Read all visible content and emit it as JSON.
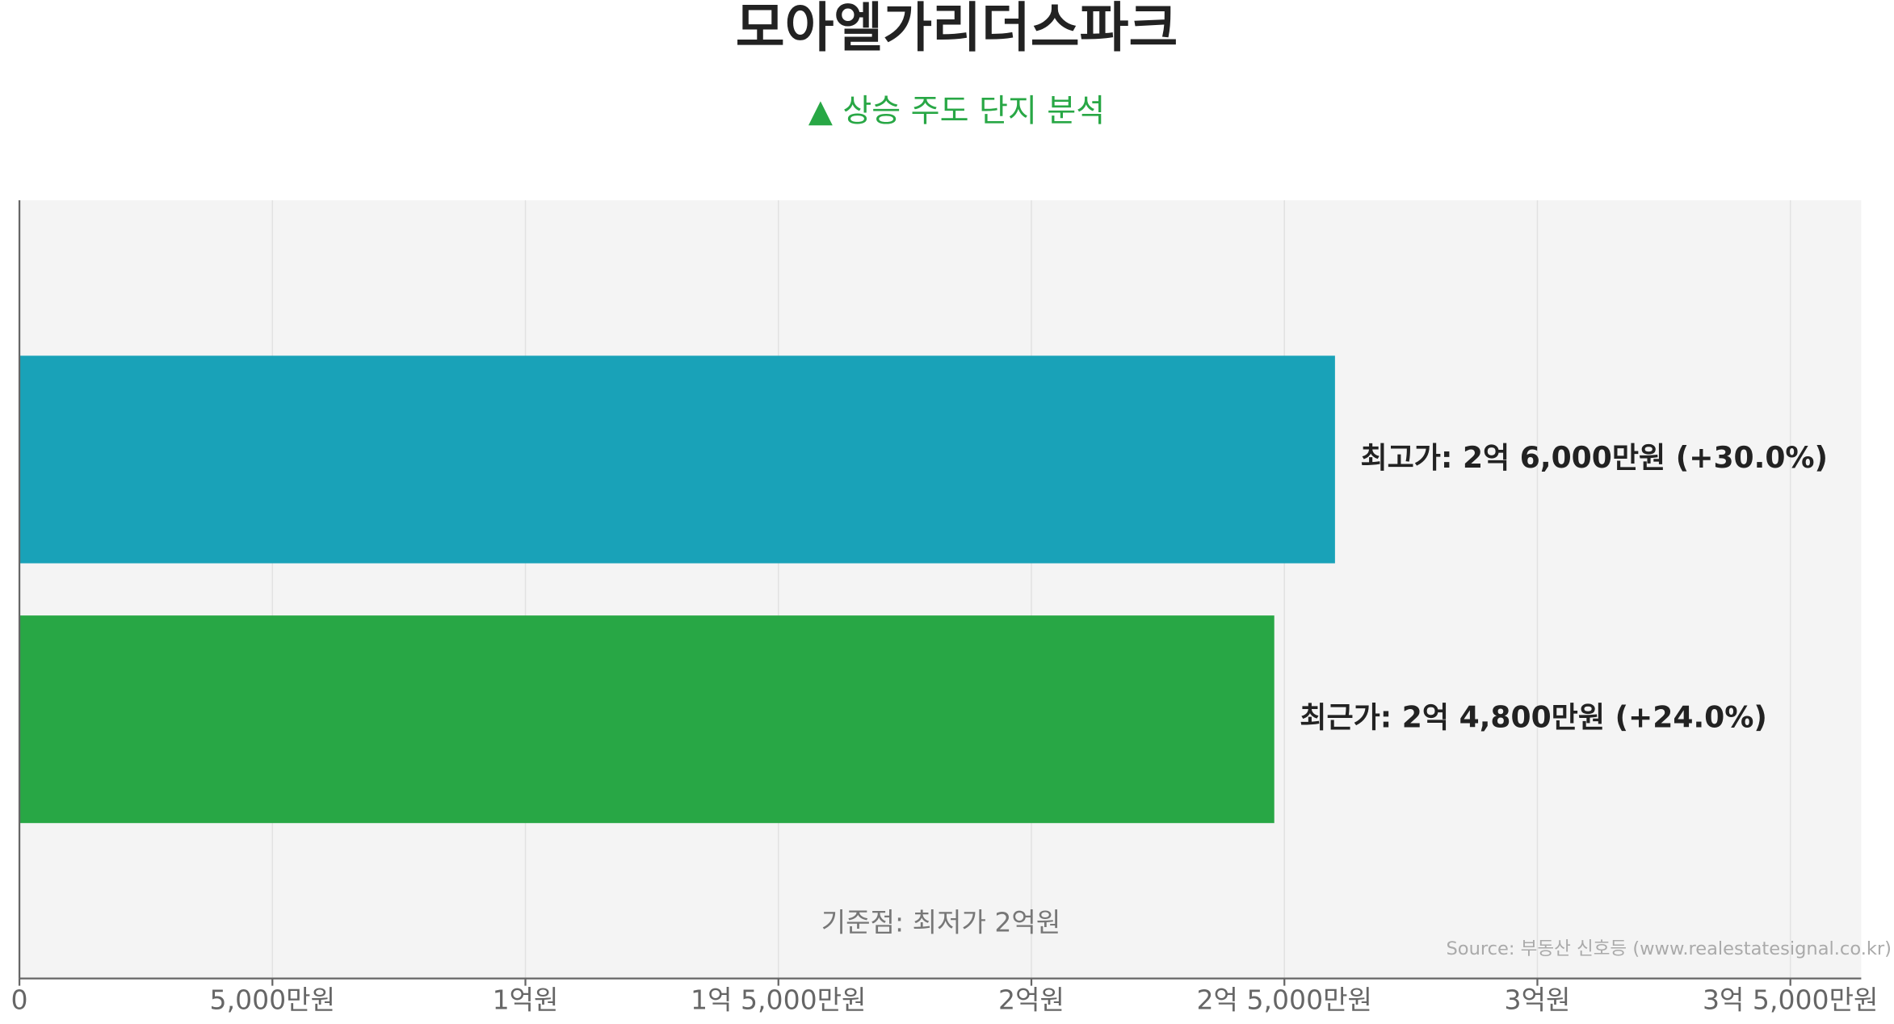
{
  "chart_data": {
    "type": "hbar",
    "title": "모아엘가리더스파크",
    "subtitle": "▲ 상승 주도 단지 분석",
    "values": [
      260000000,
      248000000
    ],
    "value_labels": [
      "최고가: 2억 6,000만원 (+30.0%)",
      "최근가: 2억 4,800만원 (+24.0%)"
    ],
    "colors": [
      "#19a2b8",
      "#28a745"
    ],
    "xlim": [
      0,
      364000000
    ],
    "xticks": [
      0,
      {
        "value": 50000000,
        "label": "5,000만원"
      },
      {
        "value": 100000000,
        "label": "1억원"
      },
      {
        "value": 150000000,
        "label": "1억 5,000만원"
      },
      {
        "value": 200000000,
        "label": "2억원"
      },
      {
        "value": 250000000,
        "label": "2억 5,000만원"
      },
      {
        "value": 300000000,
        "label": "3억원"
      },
      {
        "value": 350000000,
        "label": "3억 5,000만원"
      }
    ],
    "grid": true,
    "annotation": "기준점: 최저가 2억원",
    "source": "Source: 부동산 신호등 (www.realestatesignal.co.kr)"
  }
}
